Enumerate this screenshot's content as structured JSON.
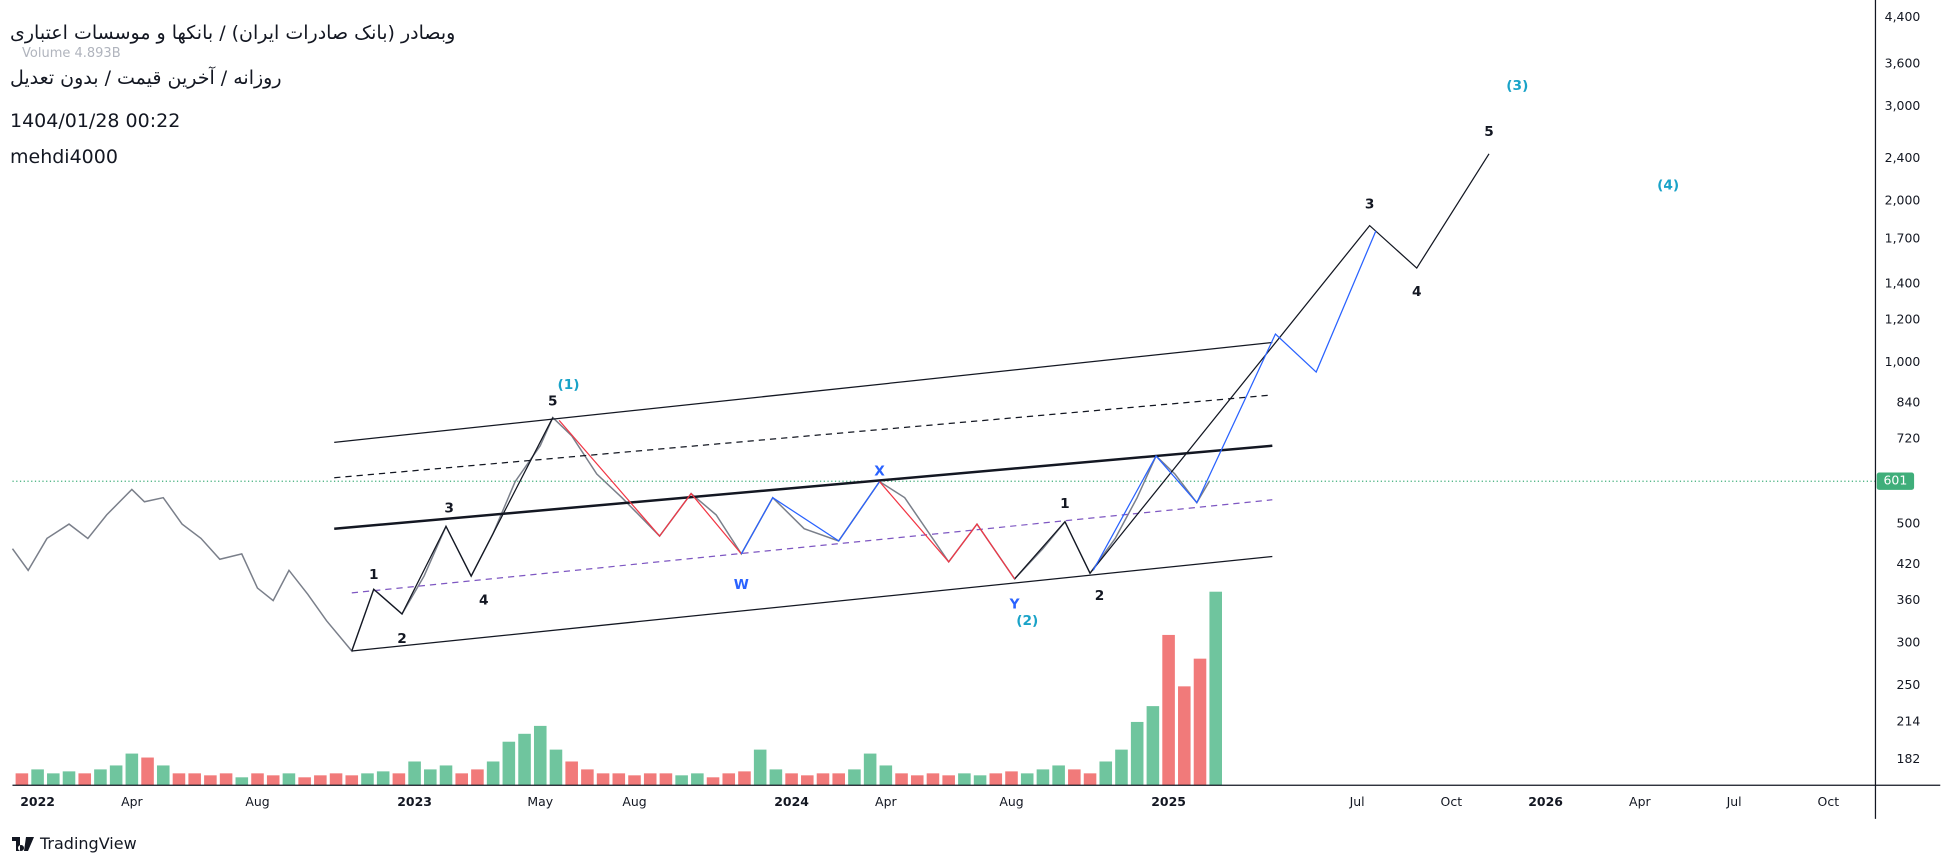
{
  "header": {
    "symbol": "وبصادر (بانک صادرات ایران) / بانکها و موسسات اعتباری",
    "settings": "روزانه / آخرین قیمت / بدون تعدیل",
    "timestamp": "1404/01/28 00:22",
    "author": "mehdi4000",
    "volume_legend": "Volume 4.893B"
  },
  "footer": {
    "brand": "TradingView"
  },
  "chart_data": {
    "type": "line",
    "log_scale": true,
    "grid": true,
    "xlim": [
      -0.8,
      58.5
    ],
    "ylim": [
      163,
      4740
    ],
    "xticks": [
      {
        "value": 0,
        "label": "2022"
      },
      {
        "value": 3,
        "label": "Apr"
      },
      {
        "value": 7,
        "label": "Aug"
      },
      {
        "value": 12,
        "label": "2023"
      },
      {
        "value": 16,
        "label": "May"
      },
      {
        "value": 19,
        "label": "Aug"
      },
      {
        "value": 24,
        "label": "2024"
      },
      {
        "value": 27,
        "label": "Apr"
      },
      {
        "value": 31,
        "label": "Aug"
      },
      {
        "value": 36,
        "label": "2025"
      },
      {
        "value": 42,
        "label": "Jul"
      },
      {
        "value": 45,
        "label": "Oct"
      },
      {
        "value": 48,
        "label": "2026"
      },
      {
        "value": 51,
        "label": "Apr"
      },
      {
        "value": 54,
        "label": "Jul"
      },
      {
        "value": 57,
        "label": "Oct"
      }
    ],
    "yticks": [
      182,
      214,
      250,
      300,
      360,
      420,
      500,
      720,
      840,
      {
        "value": 1000,
        "label": "1,000"
      },
      {
        "value": 1200,
        "label": "1,200"
      },
      {
        "value": 1400,
        "label": "1,400"
      },
      {
        "value": 1700,
        "label": "1,700"
      },
      {
        "value": 2000,
        "label": "2,000"
      },
      {
        "value": 2400,
        "label": "2,400"
      },
      {
        "value": 3000,
        "label": "3,000"
      },
      {
        "value": 3600,
        "label": "3,600"
      },
      {
        "value": 4400,
        "label": "4,400"
      }
    ],
    "last_price": 601,
    "last_price_color": "#3fae7a",
    "series": [
      {
        "color": "#7a7f8a",
        "x": [
          -0.8,
          -0.3,
          0.3,
          1,
          1.6,
          2.2,
          3,
          3.4,
          4,
          4.6,
          5.2,
          5.8,
          6.5,
          7,
          7.5,
          8,
          8.6,
          9.2,
          10,
          10.7,
          11.6,
          12.3,
          13,
          13.8,
          14.5,
          15.2,
          16,
          16.4,
          17,
          17.8,
          18.6,
          19.8,
          20.8,
          21.6,
          22.4,
          23.4,
          24.4,
          25.5,
          26.8,
          27.6,
          29,
          29.9,
          31.1,
          32,
          32.7,
          33.5,
          34.3,
          35,
          35.6,
          36.2,
          36.9,
          37.3
        ],
        "values": [
          450,
          410,
          470,
          500,
          470,
          520,
          580,
          550,
          560,
          500,
          470,
          430,
          440,
          380,
          360,
          410,
          370,
          330,
          290,
          378,
          340,
          400,
          495,
          400,
          480,
          600,
          700,
          790,
          730,
          620,
          560,
          475,
          570,
          520,
          440,
          560,
          490,
          465,
          600,
          560,
          425,
          500,
          395,
          450,
          505,
          405,
          470,
          560,
          670,
          620,
          548,
          601
        ]
      }
    ],
    "volume": {
      "up_color": "#5fbf94",
      "down_color": "#ef6b6b",
      "vlim": [
        0,
        5.2
      ],
      "x": [
        -0.5,
        0,
        0.5,
        1,
        1.5,
        2,
        2.5,
        3,
        3.5,
        4,
        4.5,
        5,
        5.5,
        6,
        6.5,
        7,
        7.5,
        8,
        8.5,
        9,
        9.5,
        10,
        10.5,
        11,
        11.5,
        12,
        12.5,
        13,
        13.5,
        14,
        14.5,
        15,
        15.5,
        16,
        16.5,
        17,
        17.5,
        18,
        18.5,
        19,
        19.5,
        20,
        20.5,
        21,
        21.5,
        22,
        22.5,
        23,
        23.5,
        24,
        24.5,
        25,
        25.5,
        26,
        26.5,
        27,
        27.5,
        28,
        28.5,
        29,
        29.5,
        30,
        30.5,
        31,
        31.5,
        32,
        32.5,
        33,
        33.5,
        34,
        34.5,
        35,
        35.5,
        36,
        36.5,
        37,
        37.5
      ],
      "values": [
        0.3,
        0.4,
        0.3,
        0.35,
        0.3,
        0.4,
        0.5,
        0.8,
        0.7,
        0.5,
        0.3,
        0.3,
        0.25,
        0.3,
        0.2,
        0.3,
        0.25,
        0.3,
        0.2,
        0.25,
        0.3,
        0.25,
        0.3,
        0.35,
        0.3,
        0.6,
        0.4,
        0.5,
        0.3,
        0.4,
        0.6,
        1.1,
        1.3,
        1.5,
        0.9,
        0.6,
        0.4,
        0.3,
        0.3,
        0.25,
        0.3,
        0.3,
        0.25,
        0.3,
        0.2,
        0.3,
        0.35,
        0.9,
        0.4,
        0.3,
        0.25,
        0.3,
        0.3,
        0.4,
        0.8,
        0.5,
        0.3,
        0.25,
        0.3,
        0.25,
        0.3,
        0.25,
        0.3,
        0.35,
        0.3,
        0.4,
        0.5,
        0.4,
        0.3,
        0.6,
        0.9,
        1.6,
        2.0,
        3.8,
        2.5,
        3.2,
        4.893
      ]
    },
    "drawings": [
      {
        "color": "#131722",
        "width": 1,
        "dash": false,
        "x": [
          9.44,
          39.3
        ],
        "y": [
          710,
          1090
        ]
      },
      {
        "color": "#131722",
        "width": 1,
        "dash": true,
        "x": [
          9.44,
          39.3
        ],
        "y": [
          610,
          870
        ]
      },
      {
        "color": "#131722",
        "width": 2,
        "dash": false,
        "x": [
          9.44,
          39.3
        ],
        "y": [
          490,
          700
        ]
      },
      {
        "color": "#7e57c2",
        "width": 1,
        "dash": true,
        "x": [
          10,
          39.3
        ],
        "y": [
          372,
          555
        ]
      },
      {
        "color": "#131722",
        "width": 1,
        "dash": false,
        "x": [
          10,
          39.3
        ],
        "y": [
          290,
          435
        ]
      },
      {
        "color": "#131722",
        "width": 1,
        "dash": false,
        "x": [
          10,
          10.7,
          11.6,
          13,
          13.8,
          16.4
        ],
        "y": [
          290,
          378,
          340,
          495,
          400,
          790
        ]
      },
      {
        "color": "#131722",
        "width": 1,
        "dash": false,
        "x": [
          31.1,
          32.7,
          33.5,
          42.4,
          43.9,
          46.2
        ],
        "y": [
          395,
          505,
          405,
          1800,
          1500,
          2450
        ]
      },
      {
        "color": "#f23645",
        "width": 1,
        "dash": false,
        "x": [
          16.6,
          19.8,
          20.8,
          22.4
        ],
        "y": [
          780,
          475,
          570,
          440
        ]
      },
      {
        "color": "#2962ff",
        "width": 1,
        "dash": false,
        "x": [
          22.4,
          23.4,
          25.5,
          26.8
        ],
        "y": [
          440,
          560,
          465,
          600
        ]
      },
      {
        "color": "#f23645",
        "width": 1,
        "dash": false,
        "x": [
          26.8,
          29,
          29.9,
          31.1
        ],
        "y": [
          600,
          425,
          500,
          395
        ]
      },
      {
        "color": "#2962ff",
        "width": 1,
        "dash": false,
        "x": [
          33.6,
          35.6,
          36.9,
          39.4,
          40.7,
          42.6
        ],
        "y": [
          410,
          670,
          548,
          1130,
          960,
          1760
        ]
      }
    ],
    "annotations": [
      {
        "text": "1",
        "x": 10.7,
        "y": 402,
        "color": "#131722"
      },
      {
        "text": "2",
        "x": 11.6,
        "y": 305,
        "color": "#131722"
      },
      {
        "text": "3",
        "x": 13.1,
        "y": 534,
        "color": "#131722"
      },
      {
        "text": "4",
        "x": 14.2,
        "y": 360,
        "color": "#131722"
      },
      {
        "text": "5",
        "x": 16.4,
        "y": 846,
        "color": "#131722"
      },
      {
        "text": "(1)",
        "x": 16.9,
        "y": 908,
        "color": "#1aa3c8"
      },
      {
        "text": "W",
        "x": 22.4,
        "y": 385,
        "color": "#2962ff"
      },
      {
        "text": "X",
        "x": 26.8,
        "y": 627,
        "color": "#2962ff"
      },
      {
        "text": "Y",
        "x": 31.1,
        "y": 354,
        "color": "#2962ff"
      },
      {
        "text": "(2)",
        "x": 31.5,
        "y": 330,
        "color": "#1aa3c8"
      },
      {
        "text": "1",
        "x": 32.7,
        "y": 545,
        "color": "#131722"
      },
      {
        "text": "2",
        "x": 33.8,
        "y": 367,
        "color": "#131722"
      },
      {
        "text": "3",
        "x": 42.4,
        "y": 1971,
        "color": "#131722"
      },
      {
        "text": "4",
        "x": 43.9,
        "y": 1355,
        "color": "#131722"
      },
      {
        "text": "5",
        "x": 46.2,
        "y": 2688,
        "color": "#131722"
      },
      {
        "text": "(3)",
        "x": 47.1,
        "y": 3278,
        "color": "#1aa3c8"
      },
      {
        "text": "(4)",
        "x": 51.9,
        "y": 2136,
        "color": "#1aa3c8"
      }
    ]
  }
}
